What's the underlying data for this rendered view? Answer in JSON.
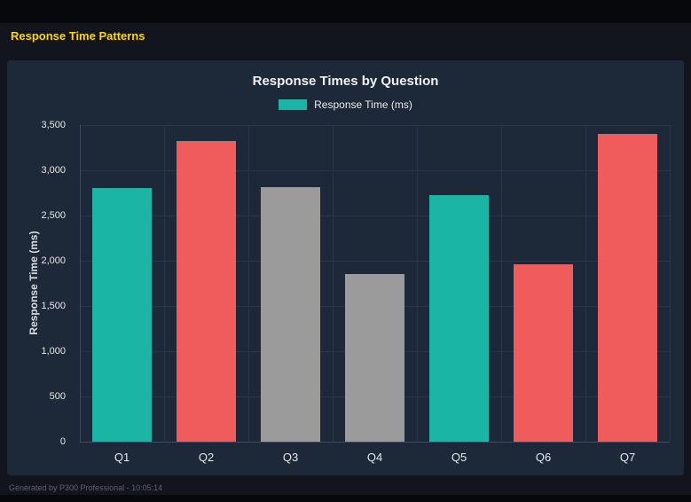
{
  "header": {
    "title": "Response Time Patterns"
  },
  "footer": {
    "text": "Generated by P300 Professional - 10:05:14"
  },
  "colors": {
    "page_title_yellow": "#ffd600",
    "panel_background": "#1d2838",
    "teal_bar": "#1ab5a5",
    "red_bar": "#f05c5c",
    "gray_bar": "#9b9b9b"
  },
  "chart_data": {
    "type": "bar",
    "title": "Response Times by Question",
    "legend": {
      "label": "Response Time (ms)",
      "position": "top",
      "swatch_color": "#1ab5a5"
    },
    "categories": [
      "Q1",
      "Q2",
      "Q3",
      "Q4",
      "Q5",
      "Q6",
      "Q7"
    ],
    "series": [
      {
        "name": "Response Time (ms)",
        "values": [
          2800,
          3320,
          2810,
          1850,
          2730,
          1960,
          3400
        ]
      }
    ],
    "bar_colors": [
      "#1ab5a5",
      "#f05c5c",
      "#9b9b9b",
      "#9b9b9b",
      "#1ab5a5",
      "#f05c5c",
      "#f05c5c"
    ],
    "xlabel": "",
    "ylabel": "Response Time (ms)",
    "ylim": [
      0,
      3500
    ],
    "yticks": [
      0,
      500,
      1000,
      1500,
      2000,
      2500,
      3000,
      3500
    ],
    "ytick_labels": [
      "0",
      "500",
      "1,000",
      "1,500",
      "2,000",
      "2,500",
      "3,000",
      "3,500"
    ],
    "grid": true
  }
}
